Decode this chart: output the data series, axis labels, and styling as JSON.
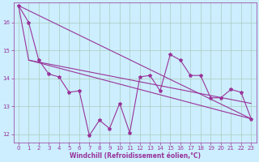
{
  "xlabel": "Windchill (Refroidissement éolien,°C)",
  "background_color": "#cceeff",
  "grid_color": "#aaccbb",
  "line_color": "#993399",
  "xlim": [
    -0.5,
    23.5
  ],
  "ylim": [
    11.7,
    16.7
  ],
  "yticks": [
    12,
    13,
    14,
    15,
    16
  ],
  "xticks": [
    0,
    1,
    2,
    3,
    4,
    5,
    6,
    7,
    8,
    9,
    10,
    11,
    12,
    13,
    14,
    15,
    16,
    17,
    18,
    19,
    20,
    21,
    22,
    23
  ],
  "series1_x": [
    0,
    1,
    2,
    3,
    4,
    5,
    6,
    7,
    8,
    9,
    10,
    11,
    12,
    13,
    14,
    15,
    16,
    17,
    18,
    19,
    20,
    21,
    22,
    23
  ],
  "series1_y": [
    16.6,
    16.0,
    14.65,
    14.15,
    14.05,
    13.5,
    13.55,
    11.95,
    12.5,
    12.2,
    13.1,
    12.05,
    14.05,
    14.1,
    13.55,
    14.85,
    14.65,
    14.1,
    14.1,
    13.3,
    13.3,
    13.6,
    13.5,
    12.55
  ],
  "series2_x": [
    0,
    1,
    23
  ],
  "series2_y": [
    16.6,
    14.65,
    12.55
  ],
  "series3_x": [
    0,
    23
  ],
  "series3_y": [
    16.6,
    12.55
  ],
  "series4_x": [
    1,
    23
  ],
  "series4_y": [
    14.65,
    13.1
  ],
  "tick_fontsize": 5,
  "xlabel_fontsize": 5.5
}
